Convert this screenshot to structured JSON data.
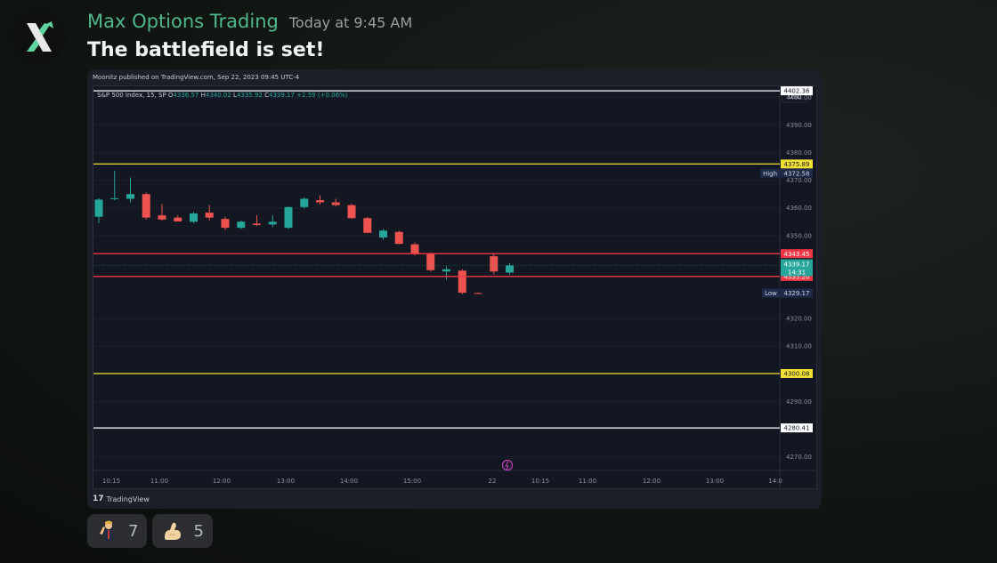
{
  "author": {
    "name": "Max Options Trading",
    "timestamp": "Today at 9:45 AM",
    "avatar_icon": "x-logo-icon"
  },
  "message": {
    "text": "The battlefield is set!"
  },
  "embed": {
    "published_line": "Moonitz published on TradingView.com, Sep 22, 2023 09:45 UTC-4",
    "footer_brand": "TradingView",
    "chart_data": {
      "type": "candlestick",
      "symbol": "S&P 500 Index, 15, SP",
      "ohlc_readout": {
        "open_label": "O",
        "open": "4336.57",
        "high_label": "H",
        "high": "4340.02",
        "low_label": "L",
        "low": "4335.92",
        "close_label": "C",
        "close": "4339.17",
        "change": "+2.59 (+0.06%)"
      },
      "currency": "USD",
      "ylim": [
        4265,
        4404
      ],
      "y_ticks": [
        "4400.00",
        "4390.00",
        "4380.00",
        "4370.00",
        "4360.00",
        "4350.00",
        "4320.00",
        "4310.00",
        "4290.00",
        "4280.00",
        "4270.00"
      ],
      "x_ticks": [
        "10:15",
        "11:00",
        "12:00",
        "13:00",
        "14:00",
        "15:00",
        "22",
        "10:15",
        "11:00",
        "12:00",
        "13:00",
        "14:0"
      ],
      "horizontal_lines": [
        {
          "value": 4402.36,
          "label": "4402.36",
          "color": "#ffffff"
        },
        {
          "value": 4375.89,
          "label": "4375.89",
          "color": "#f2e035"
        },
        {
          "value": 4343.45,
          "label": "4343.45",
          "color": "#f23645"
        },
        {
          "value": 4335.2,
          "label": "4335.20",
          "color": "#f23645"
        },
        {
          "value": 4300.08,
          "label": "4300.08",
          "color": "#f2e035"
        },
        {
          "value": 4280.41,
          "label": "4280.41",
          "color": "#ffffff"
        }
      ],
      "price_tags": {
        "high": {
          "name": "High",
          "value": "4372.58"
        },
        "low": {
          "name": "Low",
          "value": "4329.17"
        },
        "last": {
          "value": "4339.17",
          "countdown": "14:31"
        }
      },
      "candles": [
        {
          "o": 4356.8,
          "h": 4363.5,
          "l": 4354.5,
          "c": 4363.0
        },
        {
          "o": 4363.3,
          "h": 4373.5,
          "l": 4362.8,
          "c": 4363.5
        },
        {
          "o": 4363.3,
          "h": 4371.0,
          "l": 4362.0,
          "c": 4365.0
        },
        {
          "o": 4365.0,
          "h": 4365.6,
          "l": 4355.8,
          "c": 4356.5
        },
        {
          "o": 4357.3,
          "h": 4361.5,
          "l": 4355.5,
          "c": 4355.8
        },
        {
          "o": 4356.5,
          "h": 4357.3,
          "l": 4355.8,
          "c": 4355.1
        },
        {
          "o": 4355.0,
          "h": 4358.5,
          "l": 4354.5,
          "c": 4358.0
        },
        {
          "o": 4358.3,
          "h": 4361.0,
          "l": 4355.3,
          "c": 4356.5
        },
        {
          "o": 4356.0,
          "h": 4356.8,
          "l": 4352.0,
          "c": 4352.8
        },
        {
          "o": 4352.8,
          "h": 4355.5,
          "l": 4352.3,
          "c": 4355.0
        },
        {
          "o": 4354.3,
          "h": 4357.3,
          "l": 4353.5,
          "c": 4353.8
        },
        {
          "o": 4354.0,
          "h": 4357.3,
          "l": 4353.0,
          "c": 4355.0
        },
        {
          "o": 4352.8,
          "h": 4360.5,
          "l": 4352.3,
          "c": 4360.3
        },
        {
          "o": 4360.3,
          "h": 4363.8,
          "l": 4359.8,
          "c": 4363.3
        },
        {
          "o": 4362.8,
          "h": 4364.6,
          "l": 4361.3,
          "c": 4362.0
        },
        {
          "o": 4362.0,
          "h": 4363.3,
          "l": 4360.6,
          "c": 4361.0
        },
        {
          "o": 4361.0,
          "h": 4361.5,
          "l": 4356.0,
          "c": 4356.3
        },
        {
          "o": 4356.3,
          "h": 4356.8,
          "l": 4350.8,
          "c": 4351.0
        },
        {
          "o": 4349.3,
          "h": 4352.3,
          "l": 4348.5,
          "c": 4351.8
        },
        {
          "o": 4351.3,
          "h": 4351.8,
          "l": 4346.8,
          "c": 4347.0
        },
        {
          "o": 4346.8,
          "h": 4347.5,
          "l": 4342.8,
          "c": 4343.3
        },
        {
          "o": 4343.3,
          "h": 4343.8,
          "l": 4337.0,
          "c": 4337.5
        },
        {
          "o": 4337.0,
          "h": 4338.8,
          "l": 4334.0,
          "c": 4337.8
        },
        {
          "o": 4337.3,
          "h": 4337.8,
          "l": 4328.8,
          "c": 4329.3
        },
        {
          "o": 4329.2,
          "h": 4329.4,
          "l": 4328.9,
          "c": 4329.1
        },
        {
          "o": 4342.5,
          "h": 4343.3,
          "l": 4336.0,
          "c": 4337.0
        },
        {
          "o": 4336.6,
          "h": 4340.0,
          "l": 4335.9,
          "c": 4339.2
        }
      ]
    }
  },
  "reactions": [
    {
      "emoji": "person-pointing-icon",
      "count": "7"
    },
    {
      "emoji": "flexed-biceps-icon",
      "count": "5"
    }
  ]
}
